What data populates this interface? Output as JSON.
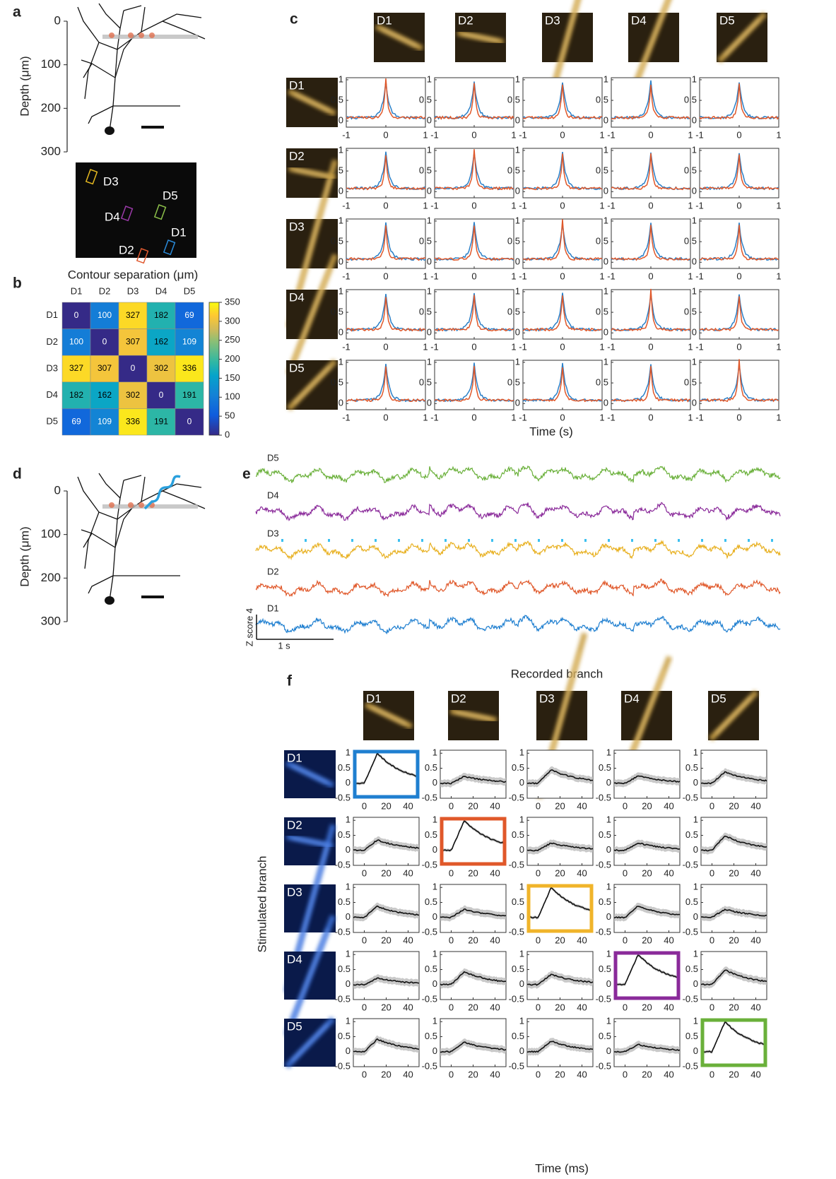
{
  "panels": {
    "a": {
      "label": "a",
      "ylabel": "Depth (μm)",
      "yticks": [
        0,
        100,
        200,
        300
      ],
      "roi_labels": [
        "D3",
        "D5",
        "D4",
        "D1",
        "D2"
      ]
    },
    "b": {
      "label": "b",
      "title": "Contour separation (μm)",
      "cols": [
        "D1",
        "D2",
        "D3",
        "D4",
        "D5"
      ],
      "rows": [
        "D1",
        "D2",
        "D3",
        "D4",
        "D5"
      ],
      "matrix": [
        [
          0,
          100,
          327,
          182,
          69
        ],
        [
          100,
          0,
          307,
          162,
          109
        ],
        [
          327,
          307,
          0,
          302,
          336
        ],
        [
          182,
          162,
          302,
          0,
          191
        ],
        [
          69,
          109,
          336,
          191,
          0
        ]
      ],
      "colorbar_ticks": [
        0,
        50,
        100,
        150,
        200,
        250,
        300,
        350
      ]
    },
    "c": {
      "label": "c",
      "columns": [
        "D1",
        "D2",
        "D3",
        "D4",
        "D5"
      ],
      "rows": [
        "D1",
        "D2",
        "D3",
        "D4",
        "D5"
      ],
      "yticks": [
        0,
        0.5,
        1
      ],
      "ylim": [
        -0.15,
        1.05
      ],
      "xticks": [
        -1,
        0,
        1
      ],
      "xlim": [
        -1,
        1
      ],
      "xlabel": "Time (s)"
    },
    "d": {
      "label": "d",
      "ylabel": "Depth (μm)",
      "yticks": [
        0,
        100,
        200,
        300
      ]
    },
    "e": {
      "label": "e",
      "traces": [
        "D5",
        "D4",
        "D3",
        "D2",
        "D1"
      ],
      "scale_y": "Z score 4",
      "scale_x": "1 s"
    },
    "f": {
      "label": "f",
      "title": "Recorded branch",
      "ylabel": "Stimulated branch",
      "columns": [
        "D1",
        "D2",
        "D3",
        "D4",
        "D5"
      ],
      "rows": [
        "D1",
        "D2",
        "D3",
        "D4",
        "D5"
      ],
      "yticks": [
        -0.5,
        0,
        0.5,
        1
      ],
      "ylim": [
        -0.5,
        1.1
      ],
      "xticks": [
        0,
        20,
        40
      ],
      "xlim": [
        -10,
        50
      ],
      "xlabel": "Time (ms)"
    }
  }
}
